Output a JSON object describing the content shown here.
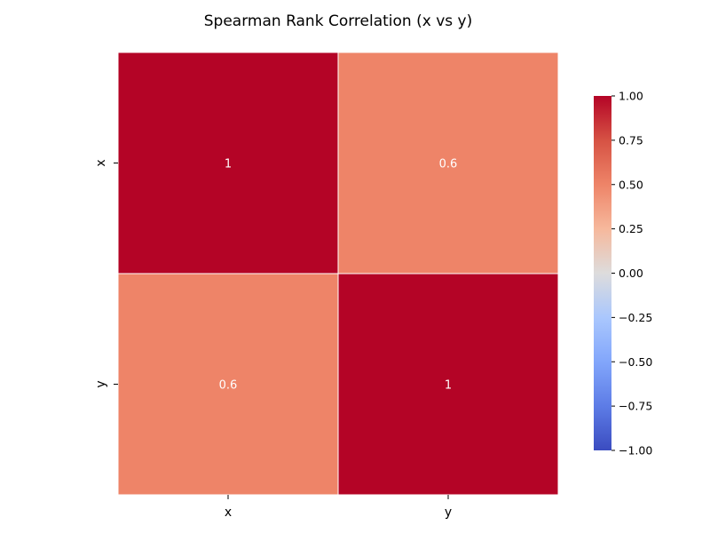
{
  "chart_data": {
    "type": "heatmap",
    "title": "Spearman Rank Correlation (x vs y)",
    "x_labels": [
      "x",
      "y"
    ],
    "y_labels": [
      "x",
      "y"
    ],
    "values": [
      [
        1.0,
        0.6
      ],
      [
        0.6,
        1.0
      ]
    ],
    "annotations": [
      [
        "1",
        "0.6"
      ],
      [
        "0.6",
        "1"
      ]
    ],
    "colormap": "coolwarm",
    "vmin": -1,
    "vmax": 1,
    "colorbar": {
      "ticks": [
        1.0,
        0.75,
        0.5,
        0.25,
        0.0,
        -0.25,
        -0.5,
        -0.75,
        -1.0
      ],
      "tick_labels": [
        "1.00",
        "0.75",
        "0.50",
        "0.25",
        "0.00",
        "−0.25",
        "−0.50",
        "−0.75",
        "−1.00"
      ],
      "placement": "right"
    },
    "colors": {
      "high": "#b40426",
      "mid": "#dddddd",
      "low": "#3b4cc0",
      "value_0_6": "#ee8468"
    }
  }
}
